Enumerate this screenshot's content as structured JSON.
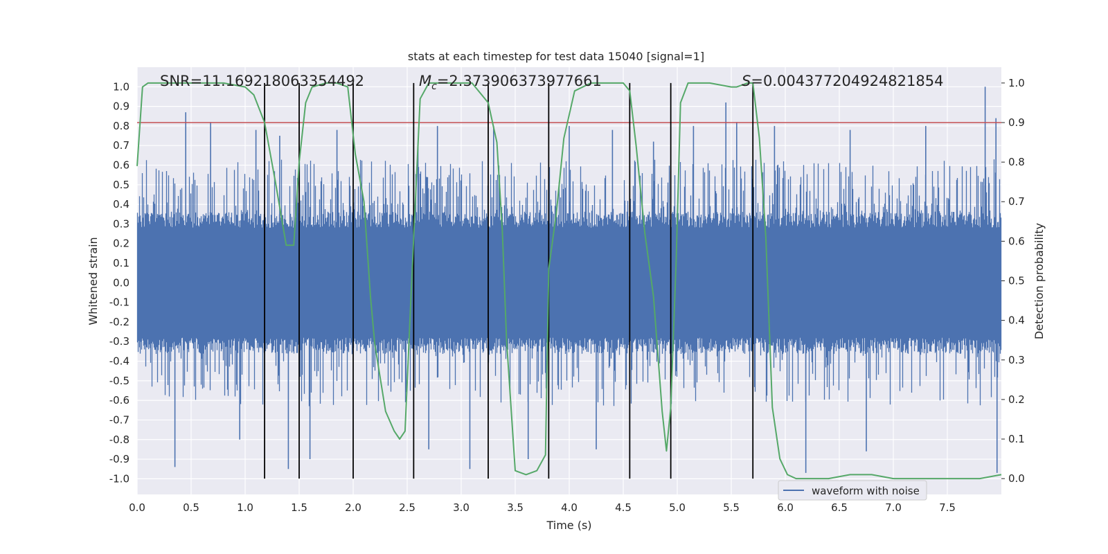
{
  "chart_data": {
    "type": "line",
    "title": "stats at each timestep for test data 15040 [signal=1]",
    "xlabel": "Time (s)",
    "ylabel_left": "Whitened strain",
    "ylabel_right": "Detection probability",
    "xlim": [
      0.0,
      8.0
    ],
    "ylim_left": [
      -1.08,
      1.1
    ],
    "ylim_right": [
      -0.04,
      1.04
    ],
    "x_ticks": [
      "0.0",
      "0.5",
      "1.0",
      "1.5",
      "2.0",
      "2.5",
      "3.0",
      "3.5",
      "4.0",
      "4.5",
      "5.0",
      "5.5",
      "6.0",
      "6.5",
      "7.0",
      "7.5"
    ],
    "y_ticks_left": [
      "-1.0",
      "-0.9",
      "-0.8",
      "-0.7",
      "-0.6",
      "-0.5",
      "-0.4",
      "-0.3",
      "-0.2",
      "-0.1",
      "0.0",
      "0.1",
      "0.2",
      "0.3",
      "0.4",
      "0.5",
      "0.6",
      "0.7",
      "0.8",
      "0.9",
      "1.0"
    ],
    "y_ticks_right": [
      "0.0",
      "0.1",
      "0.2",
      "0.3",
      "0.4",
      "0.5",
      "0.6",
      "0.7",
      "0.8",
      "0.9",
      "1.0"
    ],
    "grid": true,
    "legend": {
      "placement": "lower-right",
      "entries": [
        "waveform with noise"
      ]
    },
    "annotations": {
      "snr": "SNR=11.169218063354492",
      "mc_symbol": "M",
      "mc_sub": "c",
      "mc_value": "=2.373906373977661",
      "s_symbol": "S",
      "s_value": "=0.004377204924821854"
    },
    "threshold_line": {
      "value": 0.9,
      "axis": "right",
      "color": "#c44e52"
    },
    "vertical_lines_x": [
      1.18,
      1.5,
      2.0,
      2.56,
      3.25,
      3.81,
      4.56,
      4.94,
      5.7
    ],
    "waveform": {
      "name": "waveform with noise",
      "color": "#4c72b0",
      "core_amplitude": 0.33,
      "spikes": [
        {
          "x": 0.35,
          "y": -0.94
        },
        {
          "x": 0.45,
          "y": 0.87
        },
        {
          "x": 0.68,
          "y": 0.82
        },
        {
          "x": 0.95,
          "y": -0.8
        },
        {
          "x": 1.1,
          "y": 0.78
        },
        {
          "x": 1.32,
          "y": 0.75
        },
        {
          "x": 1.4,
          "y": -0.95
        },
        {
          "x": 1.6,
          "y": -0.9
        },
        {
          "x": 1.85,
          "y": 0.78
        },
        {
          "x": 2.6,
          "y": 0.7
        },
        {
          "x": 2.7,
          "y": -0.85
        },
        {
          "x": 2.78,
          "y": 0.8
        },
        {
          "x": 3.08,
          "y": -0.95
        },
        {
          "x": 3.3,
          "y": 0.8
        },
        {
          "x": 3.62,
          "y": -0.9
        },
        {
          "x": 4.0,
          "y": 0.8
        },
        {
          "x": 4.25,
          "y": -0.85
        },
        {
          "x": 4.4,
          "y": 0.78
        },
        {
          "x": 4.78,
          "y": 0.72
        },
        {
          "x": 5.15,
          "y": 0.8
        },
        {
          "x": 5.45,
          "y": 0.92
        },
        {
          "x": 5.55,
          "y": 0.82
        },
        {
          "x": 5.9,
          "y": 0.8
        },
        {
          "x": 6.19,
          "y": -0.97
        },
        {
          "x": 6.6,
          "y": 0.78
        },
        {
          "x": 6.75,
          "y": -0.86
        },
        {
          "x": 7.3,
          "y": 0.8
        },
        {
          "x": 7.85,
          "y": 1.0
        },
        {
          "x": 7.95,
          "y": 0.84
        },
        {
          "x": 7.96,
          "y": -0.97
        }
      ]
    },
    "probability": {
      "color": "#55a868",
      "x": [
        0.0,
        0.05,
        0.1,
        0.2,
        0.4,
        0.6,
        0.8,
        1.0,
        1.08,
        1.18,
        1.28,
        1.38,
        1.45,
        1.5,
        1.56,
        1.62,
        1.75,
        1.85,
        1.95,
        2.02,
        2.1,
        2.16,
        2.2,
        2.3,
        2.38,
        2.43,
        2.48,
        2.53,
        2.56,
        2.62,
        2.7,
        3.0,
        3.1,
        3.25,
        3.33,
        3.38,
        3.42,
        3.5,
        3.6,
        3.7,
        3.78,
        3.81,
        3.88,
        3.95,
        4.05,
        4.2,
        4.5,
        4.56,
        4.62,
        4.7,
        4.78,
        4.86,
        4.9,
        4.94,
        4.99,
        5.03,
        5.1,
        5.3,
        5.5,
        5.55,
        5.65,
        5.7,
        5.76,
        5.82,
        5.88,
        5.95,
        6.02,
        6.1,
        6.4,
        6.6,
        6.8,
        7.0,
        7.4,
        7.8,
        8.0
      ],
      "y": [
        0.79,
        0.99,
        1.0,
        1.0,
        1.0,
        1.0,
        1.0,
        0.99,
        0.97,
        0.9,
        0.75,
        0.59,
        0.59,
        0.8,
        0.95,
        0.99,
        1.0,
        1.0,
        0.99,
        0.82,
        0.7,
        0.46,
        0.34,
        0.17,
        0.12,
        0.1,
        0.12,
        0.43,
        0.61,
        0.96,
        1.0,
        1.0,
        1.0,
        0.95,
        0.85,
        0.63,
        0.35,
        0.02,
        0.01,
        0.02,
        0.06,
        0.53,
        0.67,
        0.86,
        0.98,
        1.0,
        1.0,
        0.98,
        0.84,
        0.62,
        0.46,
        0.17,
        0.07,
        0.18,
        0.55,
        0.95,
        1.0,
        1.0,
        0.99,
        0.99,
        1.0,
        1.0,
        0.86,
        0.61,
        0.18,
        0.05,
        0.01,
        0.0,
        0.0,
        0.01,
        0.01,
        0.0,
        0.0,
        0.0,
        0.01
      ]
    }
  }
}
